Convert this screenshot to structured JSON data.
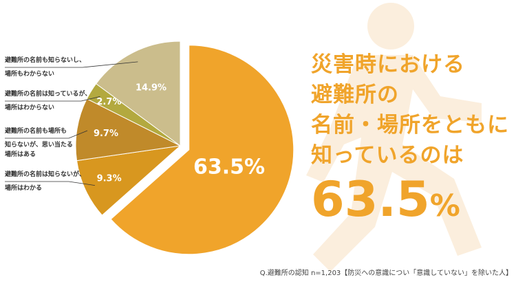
{
  "headline": {
    "lines": [
      "災害時における",
      "避難所の",
      "名前・場所をともに",
      "知っているのは"
    ],
    "value": "63.5",
    "unit": "%"
  },
  "note": "Q.避難所の認知 n=1,203【防災への意識につい「意識していない」を除いた人】",
  "colors": {
    "accent": "#f0a42b",
    "watermark": "#fbeedd"
  },
  "chart_data": {
    "type": "pie",
    "categories": [
      "避難所の名前も場所もともに知っている",
      "避難所の名前は知らないが、場所はわかる",
      "避難所の名前も場所も知らないが、思い当たる場所はある",
      "避難所の名前は知っているが、場所はわからない",
      "避難所の名前も知らないし、場所もわからない"
    ],
    "values": [
      63.5,
      9.3,
      9.7,
      2.7,
      14.9
    ],
    "value_labels": [
      "63.5%",
      "9.3%",
      "9.7%",
      "2.7%",
      "14.9%"
    ],
    "legend_labels": [
      [],
      [
        "避難所の名前は知らないが、",
        "場所はわかる"
      ],
      [
        "避難所の名前も場所も",
        "知らないが、思い当たる",
        "場所はある"
      ],
      [
        "避難所の名前は知っているが、",
        "場所はわからない"
      ],
      [
        "避難所の名前も知らないし、",
        "場所もわからない"
      ]
    ],
    "colors": [
      "#f0a42b",
      "#d8971f",
      "#c08a2a",
      "#b3a93f",
      "#cbbd8c"
    ],
    "exploded": 0,
    "legend_placement": "left"
  }
}
